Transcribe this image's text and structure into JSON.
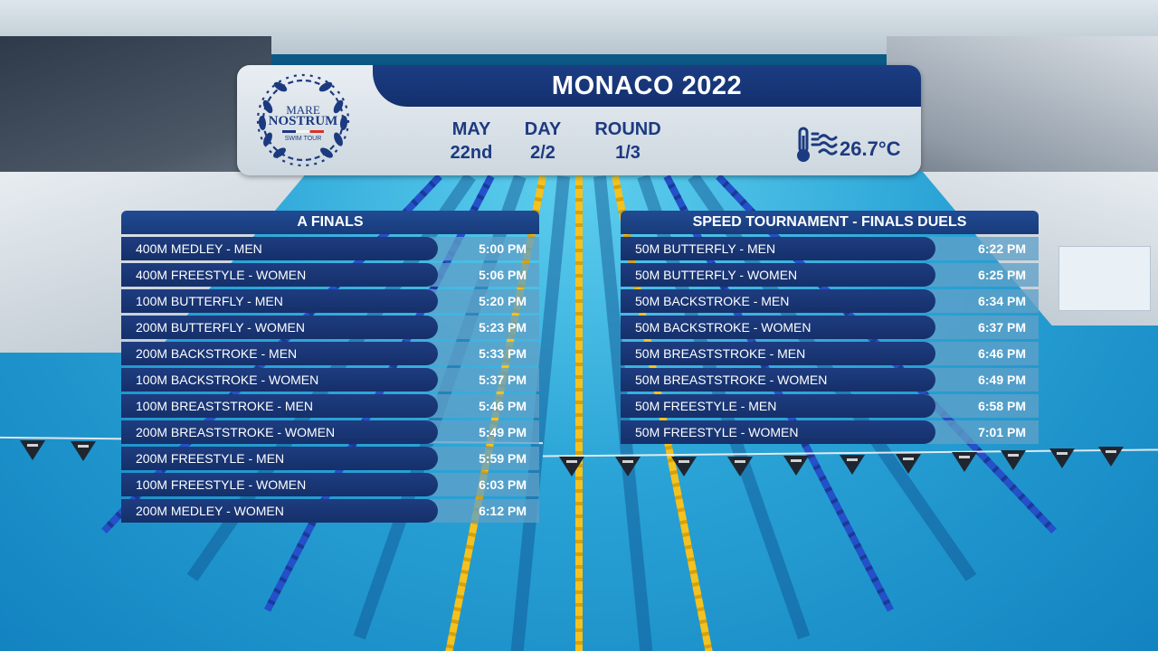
{
  "header": {
    "title": "MONACO 2022",
    "logo": {
      "line1": "MARE",
      "line2": "NOSTRUM",
      "line3": "SWIM TOUR"
    },
    "info": [
      {
        "label": "MAY",
        "value": "22nd"
      },
      {
        "label": "DAY",
        "value": "2/2"
      },
      {
        "label": "ROUND",
        "value": "1/3"
      }
    ],
    "temperature": "26.7°C",
    "temperature_icon": "water-thermometer-icon"
  },
  "a_finals": {
    "title": "A FINALS",
    "rows": [
      {
        "event": "400M MEDLEY - MEN",
        "time": "5:00 PM"
      },
      {
        "event": "400M FREESTYLE - WOMEN",
        "time": "5:06 PM"
      },
      {
        "event": "100M BUTTERFLY - MEN",
        "time": "5:20 PM"
      },
      {
        "event": "200M BUTTERFLY - WOMEN",
        "time": "5:23 PM"
      },
      {
        "event": "200M BACKSTROKE - MEN",
        "time": "5:33 PM"
      },
      {
        "event": "100M BACKSTROKE - WOMEN",
        "time": "5:37 PM"
      },
      {
        "event": "100M BREASTSTROKE - MEN",
        "time": "5:46 PM"
      },
      {
        "event": "200M BREASTSTROKE - WOMEN",
        "time": "5:49 PM"
      },
      {
        "event": "200M FREESTYLE - MEN",
        "time": "5:59 PM"
      },
      {
        "event": "100M FREESTYLE - WOMEN",
        "time": "6:03 PM"
      },
      {
        "event": "200M MEDLEY - WOMEN",
        "time": "6:12 PM"
      }
    ]
  },
  "speed_tournament": {
    "title": "SPEED TOURNAMENT - FINALS DUELS",
    "rows": [
      {
        "event": "50M BUTTERFLY - MEN",
        "time": "6:22 PM"
      },
      {
        "event": "50M BUTTERFLY - WOMEN",
        "time": "6:25 PM"
      },
      {
        "event": "50M BACKSTROKE - MEN",
        "time": "6:34 PM"
      },
      {
        "event": "50M BACKSTROKE - WOMEN",
        "time": "6:37 PM"
      },
      {
        "event": "50M BREASTSTROKE - MEN",
        "time": "6:46 PM"
      },
      {
        "event": "50M BREASTSTROKE - WOMEN",
        "time": "6:49 PM"
      },
      {
        "event": "50M FREESTYLE - MEN",
        "time": "6:58 PM"
      },
      {
        "event": "50M FREESTYLE - WOMEN",
        "time": "7:01 PM"
      }
    ]
  },
  "colors": {
    "navy": "#1c3a80",
    "row_light": "#5fa0c8",
    "pool": "#2aa3d6"
  }
}
